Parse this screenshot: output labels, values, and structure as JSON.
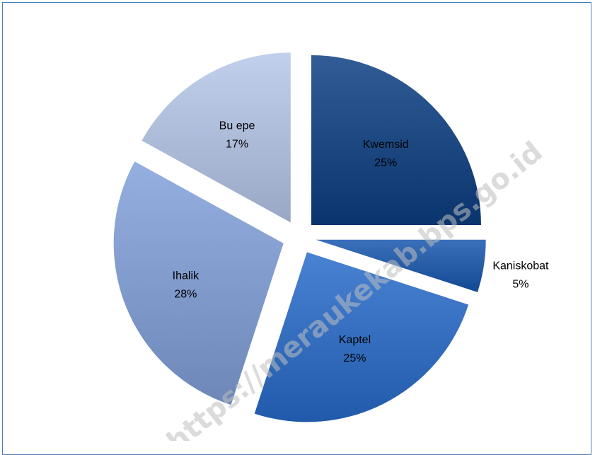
{
  "chart_data": {
    "type": "pie",
    "title": "",
    "exploded": true,
    "categories": [
      "Kwemsid",
      "Kaniskobat",
      "Kaptel",
      "Ihalik",
      "Bu epe"
    ],
    "values": [
      25,
      5,
      25,
      28,
      17
    ],
    "labels_pct": [
      "25%",
      "5%",
      "25%",
      "28%",
      "17%"
    ],
    "colors": [
      "#28528b",
      "#3166b0",
      "#3f78c9",
      "#8aa5d6",
      "#b7c6e2"
    ],
    "legend": "none"
  },
  "watermark": "https://meraukekab.bps.go.id"
}
